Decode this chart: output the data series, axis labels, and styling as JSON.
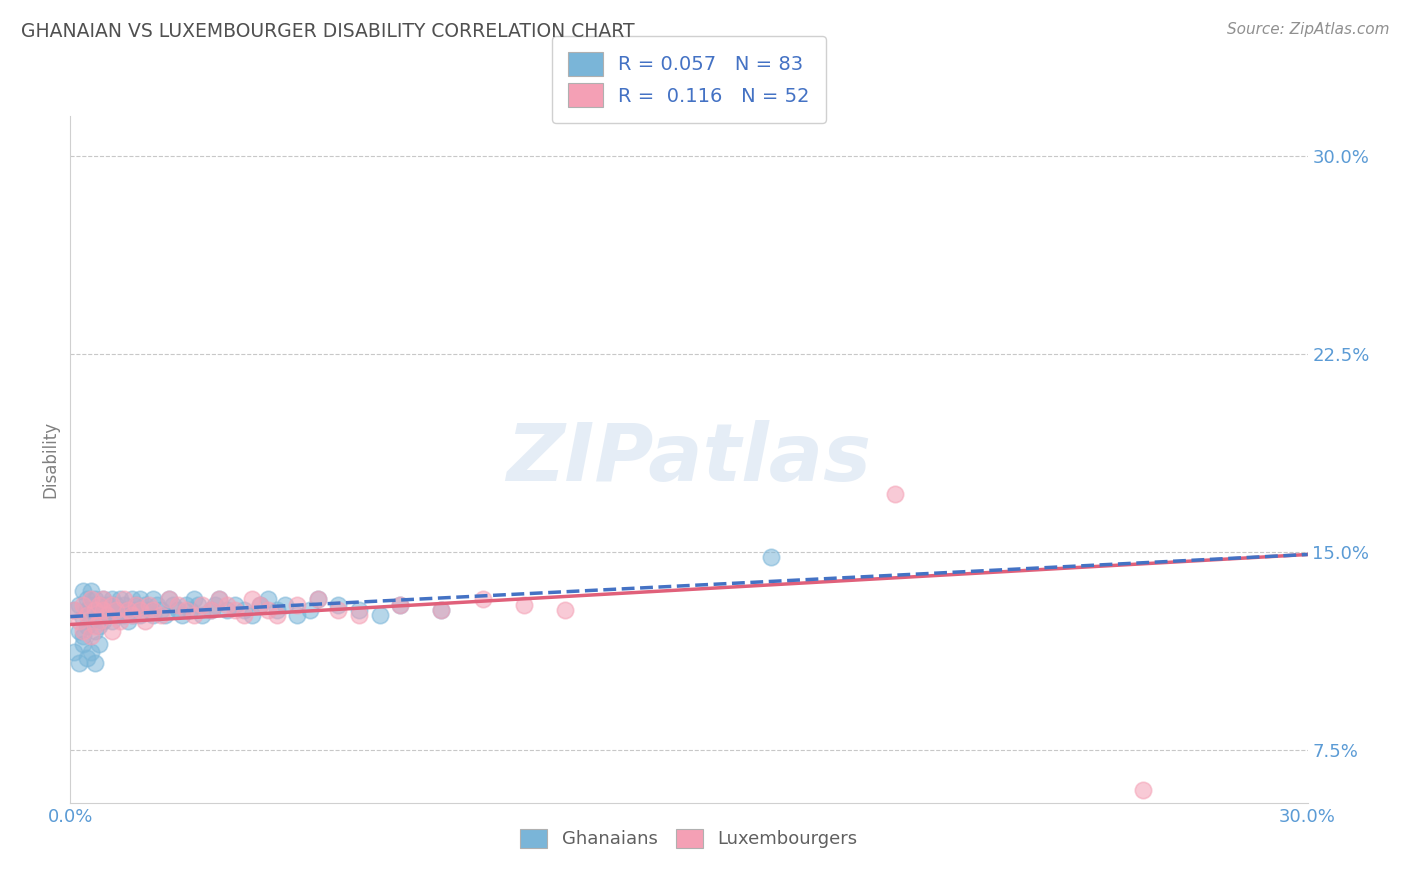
{
  "title": "GHANAIAN VS LUXEMBOURGER DISABILITY CORRELATION CHART",
  "source": "Source: ZipAtlas.com",
  "watermark": "ZIPatlas",
  "ylabel": "Disability",
  "xlim": [
    0.0,
    0.3
  ],
  "ylim": [
    0.055,
    0.315
  ],
  "xticks": [
    0.0,
    0.033,
    0.067,
    0.1,
    0.133,
    0.167,
    0.2,
    0.233,
    0.267,
    0.3
  ],
  "yticks": [
    0.075,
    0.15,
    0.225,
    0.3
  ],
  "yticklabels": [
    "7.5%",
    "15.0%",
    "22.5%",
    "30.0%"
  ],
  "ghanaian_color": "#7ab5d8",
  "luxembourger_color": "#f4a0b5",
  "ghanaian_R": 0.057,
  "ghanaian_N": 83,
  "luxembourger_R": 0.116,
  "luxembourger_N": 52,
  "ghanaian_x": [
    0.001,
    0.002,
    0.002,
    0.003,
    0.003,
    0.003,
    0.004,
    0.004,
    0.004,
    0.005,
    0.005,
    0.005,
    0.006,
    0.006,
    0.006,
    0.007,
    0.007,
    0.007,
    0.008,
    0.008,
    0.008,
    0.009,
    0.009,
    0.01,
    0.01,
    0.01,
    0.011,
    0.011,
    0.012,
    0.012,
    0.013,
    0.013,
    0.014,
    0.014,
    0.015,
    0.015,
    0.016,
    0.016,
    0.017,
    0.017,
    0.018,
    0.019,
    0.02,
    0.02,
    0.021,
    0.022,
    0.023,
    0.024,
    0.025,
    0.026,
    0.027,
    0.028,
    0.029,
    0.03,
    0.031,
    0.032,
    0.034,
    0.035,
    0.036,
    0.038,
    0.04,
    0.042,
    0.044,
    0.046,
    0.048,
    0.05,
    0.052,
    0.055,
    0.058,
    0.06,
    0.065,
    0.07,
    0.075,
    0.08,
    0.09,
    0.001,
    0.002,
    0.003,
    0.004,
    0.005,
    0.006,
    0.007,
    0.17
  ],
  "ghanaian_y": [
    0.128,
    0.13,
    0.12,
    0.135,
    0.125,
    0.118,
    0.132,
    0.122,
    0.128,
    0.13,
    0.124,
    0.135,
    0.128,
    0.12,
    0.132,
    0.126,
    0.13,
    0.122,
    0.128,
    0.124,
    0.132,
    0.126,
    0.13,
    0.128,
    0.124,
    0.132,
    0.13,
    0.126,
    0.128,
    0.132,
    0.126,
    0.13,
    0.128,
    0.124,
    0.132,
    0.126,
    0.13,
    0.128,
    0.126,
    0.132,
    0.13,
    0.128,
    0.126,
    0.132,
    0.13,
    0.128,
    0.126,
    0.132,
    0.13,
    0.128,
    0.126,
    0.13,
    0.128,
    0.132,
    0.13,
    0.126,
    0.128,
    0.13,
    0.132,
    0.128,
    0.13,
    0.128,
    0.126,
    0.13,
    0.132,
    0.128,
    0.13,
    0.126,
    0.128,
    0.132,
    0.13,
    0.128,
    0.126,
    0.13,
    0.128,
    0.112,
    0.108,
    0.115,
    0.11,
    0.112,
    0.108,
    0.115,
    0.148
  ],
  "luxembourger_x": [
    0.001,
    0.002,
    0.003,
    0.003,
    0.004,
    0.005,
    0.005,
    0.006,
    0.006,
    0.007,
    0.007,
    0.008,
    0.008,
    0.009,
    0.01,
    0.01,
    0.011,
    0.012,
    0.013,
    0.014,
    0.015,
    0.016,
    0.017,
    0.018,
    0.019,
    0.02,
    0.022,
    0.024,
    0.026,
    0.028,
    0.03,
    0.032,
    0.034,
    0.036,
    0.038,
    0.04,
    0.042,
    0.044,
    0.046,
    0.048,
    0.05,
    0.055,
    0.06,
    0.065,
    0.07,
    0.08,
    0.09,
    0.1,
    0.11,
    0.12,
    0.2,
    0.26
  ],
  "luxembourger_y": [
    0.128,
    0.124,
    0.13,
    0.12,
    0.126,
    0.132,
    0.118,
    0.128,
    0.122,
    0.13,
    0.124,
    0.128,
    0.132,
    0.126,
    0.13,
    0.12,
    0.128,
    0.124,
    0.132,
    0.128,
    0.126,
    0.13,
    0.128,
    0.124,
    0.13,
    0.128,
    0.126,
    0.132,
    0.13,
    0.128,
    0.126,
    0.13,
    0.128,
    0.132,
    0.13,
    0.128,
    0.126,
    0.132,
    0.13,
    0.128,
    0.126,
    0.13,
    0.132,
    0.128,
    0.126,
    0.13,
    0.128,
    0.132,
    0.13,
    0.128,
    0.172,
    0.06
  ],
  "trend_ghanaian_x0": 0.0,
  "trend_ghanaian_y0": 0.1255,
  "trend_ghanaian_x1": 0.3,
  "trend_ghanaian_y1": 0.149,
  "trend_luxembourger_x0": 0.0,
  "trend_luxembourger_y0": 0.1225,
  "trend_luxembourger_x1": 0.3,
  "trend_luxembourger_y1": 0.149,
  "trend_line_color_ghanaian": "#4472c4",
  "trend_line_color_luxembourger": "#e0607a",
  "background_color": "#ffffff",
  "grid_color": "#c8c8c8",
  "title_color": "#505050",
  "axis_label_color": "#808080",
  "tick_label_color": "#5b9bd5",
  "source_color": "#909090"
}
